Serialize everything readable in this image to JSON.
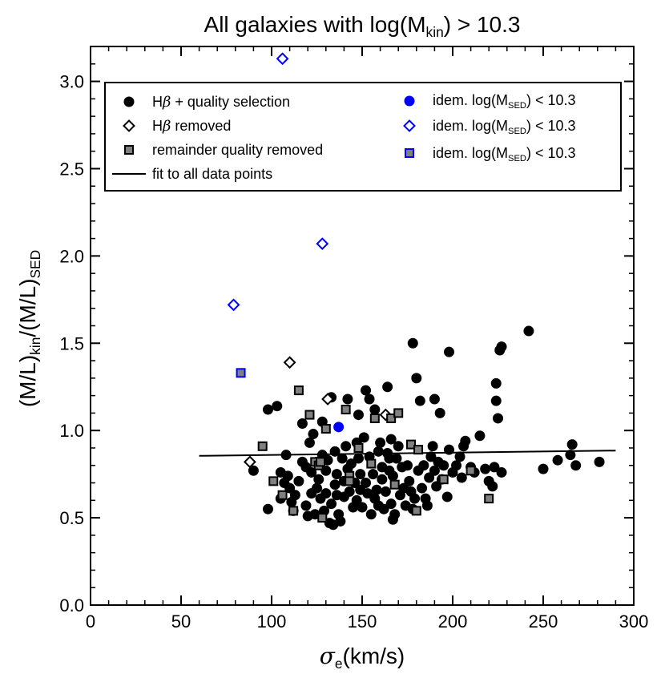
{
  "chart_data": {
    "type": "scatter",
    "title": {
      "prefix": "All galaxies with log(M",
      "sub": "kin",
      "suffix": ") > 10.3"
    },
    "xlabel": {
      "symbol": "σ",
      "sub": "e",
      "rest": "(km/s)"
    },
    "ylabel": {
      "p1": "(M/L)",
      "sub1": "kin",
      "p2": "/(M/L)",
      "sub2": "SED"
    },
    "xlim": [
      0,
      300
    ],
    "ylim": [
      0.0,
      3.2
    ],
    "xticks": [
      0,
      50,
      100,
      150,
      200,
      250,
      300
    ],
    "xtick_labels": [
      "0",
      "50",
      "100",
      "150",
      "200",
      "250",
      "300"
    ],
    "yticks": [
      0.0,
      0.5,
      1.0,
      1.5,
      2.0,
      2.5,
      3.0
    ],
    "ytick_labels": [
      "0.0",
      "0.5",
      "1.0",
      "1.5",
      "2.0",
      "2.5",
      "3.0"
    ],
    "x_minor_step": 10,
    "y_minor_step": 0.1,
    "legend": {
      "location": "upper",
      "entries": [
        {
          "key": "hb_quality",
          "label_pre": "H",
          "label_ital": "β",
          "label_post": " + quality selection",
          "marker": "circle",
          "color": "#000000"
        },
        {
          "key": "hb_removed",
          "label_pre": "H",
          "label_ital": "β",
          "label_post": " removed",
          "marker": "diamond-open",
          "color": "#000000"
        },
        {
          "key": "remainder",
          "label_pre": "remainder quality removed",
          "label_ital": "",
          "label_post": "",
          "marker": "square-gray",
          "color": "#000000"
        },
        {
          "key": "fit",
          "label_pre": "fit to all data points",
          "label_ital": "",
          "label_post": "",
          "marker": "line",
          "color": "#000000"
        },
        {
          "key": "idem1",
          "label_pre": "idem. log(M",
          "label_sub": "SED",
          "label_post": ") < 10.3",
          "marker": "circle",
          "color": "#0000ff"
        },
        {
          "key": "idem2",
          "label_pre": "idem. log(M",
          "label_sub": "SED",
          "label_post": ") < 10.3",
          "marker": "diamond-open",
          "color": "#0000ff"
        },
        {
          "key": "idem3",
          "label_pre": "idem. log(M",
          "label_sub": "SED",
          "label_post": ") < 10.3",
          "marker": "square-gray",
          "color": "#0000ff"
        }
      ]
    },
    "fit_line": {
      "x": [
        60,
        290
      ],
      "y": [
        0.855,
        0.885
      ],
      "color": "#000000"
    },
    "series": [
      {
        "name": "Hβ + quality selection",
        "marker": "circle",
        "color": "#000000",
        "points": [
          [
            90,
            0.77
          ],
          [
            98,
            0.55
          ],
          [
            98,
            1.12
          ],
          [
            103,
            1.14
          ],
          [
            105,
            0.76
          ],
          [
            105,
            0.61
          ],
          [
            107,
            0.7
          ],
          [
            108,
            0.86
          ],
          [
            109,
            0.74
          ],
          [
            110,
            0.67
          ],
          [
            111,
            0.59
          ],
          [
            112,
            0.54
          ],
          [
            113,
            0.63
          ],
          [
            115,
            0.71
          ],
          [
            117,
            0.82
          ],
          [
            117,
            1.04
          ],
          [
            119,
            0.57
          ],
          [
            119,
            0.79
          ],
          [
            120,
            0.51
          ],
          [
            121,
            0.93
          ],
          [
            122,
            0.64
          ],
          [
            122,
            0.76
          ],
          [
            123,
            0.98
          ],
          [
            124,
            0.52
          ],
          [
            125,
            0.82
          ],
          [
            125,
            0.67
          ],
          [
            126,
            0.72
          ],
          [
            127,
            0.61
          ],
          [
            128,
            1.05
          ],
          [
            128,
            0.86
          ],
          [
            129,
            0.54
          ],
          [
            130,
            0.77
          ],
          [
            130,
            0.64
          ],
          [
            131,
            0.83
          ],
          [
            132,
            0.47
          ],
          [
            133,
            1.19
          ],
          [
            133,
            0.58
          ],
          [
            134,
            0.46
          ],
          [
            135,
            0.69
          ],
          [
            135,
            0.88
          ],
          [
            136,
            0.75
          ],
          [
            136,
            0.63
          ],
          [
            137,
            0.52
          ],
          [
            138,
            0.48
          ],
          [
            139,
            0.84
          ],
          [
            140,
            0.71
          ],
          [
            140,
            0.62
          ],
          [
            141,
            0.91
          ],
          [
            142,
            0.78
          ],
          [
            142,
            1.18
          ],
          [
            143,
            0.65
          ],
          [
            144,
            0.81
          ],
          [
            145,
            0.56
          ],
          [
            146,
            0.7
          ],
          [
            147,
            0.93
          ],
          [
            147,
            0.6
          ],
          [
            148,
            1.09
          ],
          [
            148,
            0.84
          ],
          [
            149,
            0.75
          ],
          [
            149,
            0.66
          ],
          [
            150,
            0.56
          ],
          [
            151,
            0.96
          ],
          [
            152,
            1.23
          ],
          [
            152,
            0.7
          ],
          [
            153,
            0.64
          ],
          [
            154,
            1.18
          ],
          [
            154,
            0.85
          ],
          [
            155,
            0.52
          ],
          [
            156,
            0.75
          ],
          [
            157,
            0.61
          ],
          [
            157,
            1.12
          ],
          [
            158,
            0.66
          ],
          [
            159,
            0.88
          ],
          [
            159,
            0.57
          ],
          [
            160,
            0.93
          ],
          [
            161,
            0.79
          ],
          [
            161,
            0.72
          ],
          [
            162,
            0.55
          ],
          [
            163,
            0.65
          ],
          [
            164,
            0.87
          ],
          [
            164,
            1.25
          ],
          [
            165,
            0.77
          ],
          [
            165,
            0.84
          ],
          [
            166,
            0.58
          ],
          [
            166,
            0.95
          ],
          [
            167,
            0.49
          ],
          [
            167,
            0.74
          ],
          [
            168,
            0.52
          ],
          [
            169,
            0.84
          ],
          [
            170,
            0.91
          ],
          [
            171,
            0.63
          ],
          [
            172,
            0.79
          ],
          [
            173,
            0.67
          ],
          [
            174,
            0.57
          ],
          [
            175,
            0.8
          ],
          [
            176,
            0.71
          ],
          [
            177,
            0.65
          ],
          [
            178,
            1.5
          ],
          [
            178,
            0.55
          ],
          [
            179,
            0.61
          ],
          [
            180,
            1.3
          ],
          [
            181,
            0.77
          ],
          [
            182,
            1.17
          ],
          [
            183,
            0.67
          ],
          [
            184,
            0.8
          ],
          [
            185,
            0.61
          ],
          [
            186,
            0.57
          ],
          [
            187,
            0.73
          ],
          [
            188,
            0.85
          ],
          [
            189,
            0.91
          ],
          [
            190,
            1.18
          ],
          [
            190,
            0.77
          ],
          [
            191,
            0.68
          ],
          [
            192,
            0.82
          ],
          [
            193,
            1.1
          ],
          [
            194,
            0.72
          ],
          [
            195,
            0.8
          ],
          [
            197,
            0.62
          ],
          [
            198,
            0.89
          ],
          [
            198,
            1.45
          ],
          [
            200,
            0.76
          ],
          [
            202,
            0.8
          ],
          [
            204,
            0.85
          ],
          [
            205,
            0.73
          ],
          [
            206,
            0.91
          ],
          [
            207,
            0.94
          ],
          [
            210,
            0.79
          ],
          [
            212,
            0.76
          ],
          [
            215,
            0.97
          ],
          [
            218,
            0.78
          ],
          [
            220,
            0.71
          ],
          [
            222,
            0.68
          ],
          [
            223,
            0.79
          ],
          [
            224,
            1.27
          ],
          [
            224,
            1.17
          ],
          [
            225,
            1.07
          ],
          [
            226,
            1.46
          ],
          [
            227,
            1.48
          ],
          [
            227,
            0.76
          ],
          [
            242,
            1.57
          ],
          [
            250,
            0.78
          ],
          [
            258,
            0.83
          ],
          [
            265,
            0.86
          ],
          [
            266,
            0.92
          ],
          [
            268,
            0.8
          ],
          [
            281,
            0.82
          ]
        ]
      },
      {
        "name": "Hβ removed",
        "marker": "diamond-open",
        "color": "#000000",
        "points": [
          [
            88,
            0.82
          ],
          [
            110,
            1.39
          ],
          [
            131,
            1.18
          ],
          [
            163,
            1.09
          ]
        ]
      },
      {
        "name": "remainder quality removed",
        "marker": "square-gray",
        "color": "#000000",
        "points": [
          [
            95,
            0.91
          ],
          [
            101,
            0.71
          ],
          [
            106,
            0.63
          ],
          [
            112,
            0.54
          ],
          [
            115,
            1.23
          ],
          [
            121,
            1.09
          ],
          [
            124,
            0.82
          ],
          [
            126,
            0.8
          ],
          [
            127,
            0.82
          ],
          [
            128,
            0.5
          ],
          [
            130,
            1.01
          ],
          [
            141,
            1.12
          ],
          [
            143,
            0.74
          ],
          [
            143,
            0.71
          ],
          [
            148,
            0.9
          ],
          [
            155,
            0.81
          ],
          [
            157,
            1.07
          ],
          [
            166,
            1.07
          ],
          [
            168,
            0.69
          ],
          [
            170,
            1.1
          ],
          [
            177,
            0.92
          ],
          [
            180,
            0.54
          ],
          [
            181,
            0.89
          ],
          [
            195,
            0.72
          ],
          [
            210,
            0.77
          ],
          [
            220,
            0.61
          ]
        ]
      },
      {
        "name": "idem. log(M_SED) < 10.3 (circle)",
        "marker": "circle",
        "color": "#0000ff",
        "points": [
          [
            137,
            1.02
          ]
        ]
      },
      {
        "name": "idem. log(M_SED) < 10.3 (diamond)",
        "marker": "diamond-open",
        "color": "#0000ff",
        "points": [
          [
            79,
            1.72
          ],
          [
            106,
            3.13
          ],
          [
            128,
            2.07
          ]
        ]
      },
      {
        "name": "idem. log(M_SED) < 10.3 (square)",
        "marker": "square-gray",
        "color": "#0000ff",
        "points": [
          [
            83,
            1.33
          ]
        ]
      }
    ]
  }
}
